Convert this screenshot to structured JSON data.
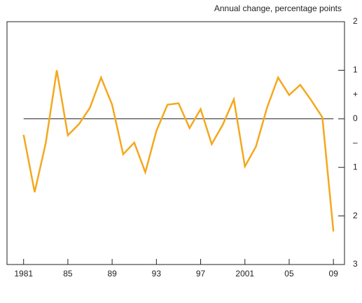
{
  "chart_data": {
    "type": "line",
    "annotations": {
      "title": "Annual change, percentage points",
      "plus": "+",
      "minus": "–"
    },
    "x": [
      1981,
      1982,
      1983,
      1984,
      1985,
      1986,
      1987,
      1988,
      1989,
      1990,
      1991,
      1992,
      1993,
      1994,
      1995,
      1996,
      1997,
      1998,
      1999,
      2000,
      2001,
      2002,
      2003,
      2004,
      2005,
      2006,
      2007,
      2008,
      2009
    ],
    "values": [
      -0.33,
      -1.51,
      -0.5,
      1.0,
      -0.34,
      -0.11,
      0.23,
      0.85,
      0.29,
      -0.73,
      -0.49,
      -1.1,
      -0.25,
      0.29,
      0.32,
      -0.19,
      0.2,
      -0.52,
      -0.12,
      0.4,
      -0.98,
      -0.57,
      0.23,
      0.85,
      0.49,
      0.7,
      0.38,
      0.03,
      -2.32
    ],
    "color": "#f4a81d",
    "xlim": [
      1979.5,
      2010
    ],
    "xticks": [
      1981,
      {
        "value": 1985,
        "label": "85"
      },
      {
        "value": 1989,
        "label": "89"
      },
      {
        "value": 1993,
        "label": "93"
      },
      {
        "value": 1997,
        "label": "97"
      },
      2001,
      {
        "value": 2005,
        "label": "05"
      },
      {
        "value": 2009,
        "label": "09"
      }
    ],
    "ylim": [
      -3,
      2
    ],
    "yticks": [
      2,
      1,
      0,
      {
        "value": -1,
        "label": "1"
      },
      {
        "value": -2,
        "label": "2"
      },
      {
        "value": -3,
        "label": "3"
      }
    ],
    "zero_line": true
  }
}
